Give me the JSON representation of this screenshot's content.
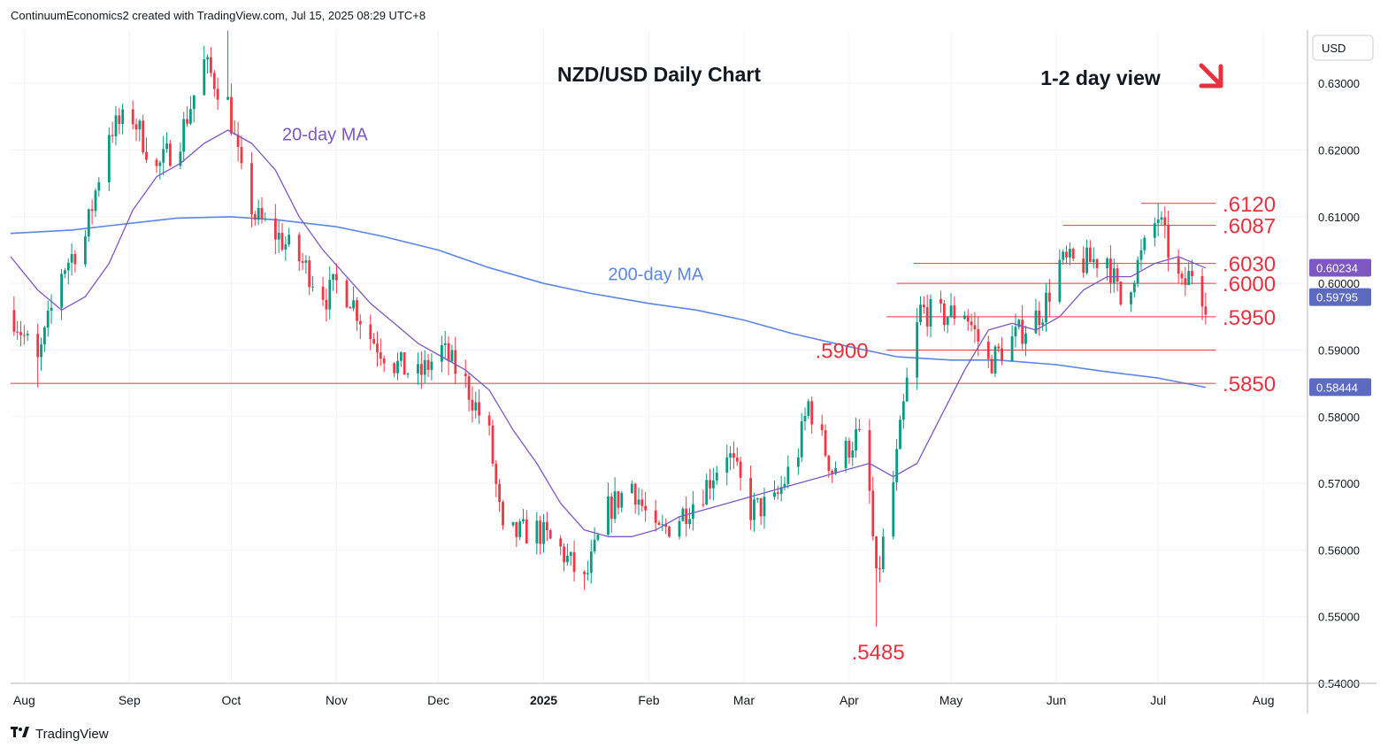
{
  "header": {
    "attribution": "ContinuumEconomics2 created with TradingView.com, Jul 15, 2025 08:29 UTC+8"
  },
  "footer": {
    "logo_icon": "tradingview-logo-icon",
    "brand": "TradingView"
  },
  "colors": {
    "up": "#089981",
    "down": "#f23645",
    "ma20": "#7e57c2",
    "ma200": "#5b86e5",
    "level_line": "#f23645",
    "level_text": "#e8313f",
    "grid": "#f0f3fa",
    "current_price_badge": "#5c6bc0",
    "ma200_badge": "#5c6bc0",
    "support_badge": "#6f7fc9"
  },
  "chart_data": {
    "type": "candlestick",
    "title": "NZD/USD Daily Chart",
    "subtitle": "1-2 day view",
    "view_arrow_icon": "red-down-right-arrow-icon",
    "currency": "USD",
    "ylim": [
      0.54,
      0.638
    ],
    "y_ticks": [
      "0.63000",
      "0.62000",
      "0.61000",
      "0.60000",
      "0.59000",
      "0.58000",
      "0.57000",
      "0.56000",
      "0.55000",
      "0.54000"
    ],
    "x_start": "2024-07-28",
    "x_end": "2025-08-14",
    "x_ticks": [
      {
        "date": "2024-08-01",
        "label": "Aug",
        "bold": false
      },
      {
        "date": "2024-09-01",
        "label": "Sep",
        "bold": false
      },
      {
        "date": "2024-10-01",
        "label": "Oct",
        "bold": false
      },
      {
        "date": "2024-11-01",
        "label": "Nov",
        "bold": false
      },
      {
        "date": "2024-12-01",
        "label": "Dec",
        "bold": false
      },
      {
        "date": "2025-01-01",
        "label": "2025",
        "bold": true
      },
      {
        "date": "2025-02-01",
        "label": "Feb",
        "bold": false
      },
      {
        "date": "2025-03-01",
        "label": "Mar",
        "bold": false
      },
      {
        "date": "2025-04-01",
        "label": "Apr",
        "bold": false
      },
      {
        "date": "2025-05-01",
        "label": "May",
        "bold": false
      },
      {
        "date": "2025-06-01",
        "label": "Jun",
        "bold": false
      },
      {
        "date": "2025-07-01",
        "label": "Jul",
        "bold": false
      },
      {
        "date": "2025-08-01",
        "label": "Aug",
        "bold": false
      }
    ],
    "grid": true,
    "price_path": [
      [
        "2024-07-28",
        0.596
      ],
      [
        "2024-08-05",
        0.588
      ],
      [
        "2024-08-12",
        0.602
      ],
      [
        "2024-08-19",
        0.607
      ],
      [
        "2024-08-26",
        0.623
      ],
      [
        "2024-09-02",
        0.625
      ],
      [
        "2024-09-09",
        0.617
      ],
      [
        "2024-09-16",
        0.622
      ],
      [
        "2024-09-23",
        0.633
      ],
      [
        "2024-09-30",
        0.627
      ],
      [
        "2024-10-04",
        0.616
      ],
      [
        "2024-10-08",
        0.61
      ],
      [
        "2024-10-15",
        0.607
      ],
      [
        "2024-10-22",
        0.603
      ],
      [
        "2024-10-29",
        0.598
      ],
      [
        "2024-11-01",
        0.6
      ],
      [
        "2024-11-05",
        0.598
      ],
      [
        "2024-11-11",
        0.592
      ],
      [
        "2024-11-18",
        0.588
      ],
      [
        "2024-11-25",
        0.586
      ],
      [
        "2024-12-02",
        0.59
      ],
      [
        "2024-12-09",
        0.585
      ],
      [
        "2024-12-16",
        0.577
      ],
      [
        "2024-12-20",
        0.562
      ],
      [
        "2024-12-30",
        0.563
      ],
      [
        "2025-01-06",
        0.56
      ],
      [
        "2025-01-13",
        0.555
      ],
      [
        "2025-01-20",
        0.566
      ],
      [
        "2025-01-27",
        0.57
      ],
      [
        "2025-02-03",
        0.562
      ],
      [
        "2025-02-10",
        0.565
      ],
      [
        "2025-02-17",
        0.569
      ],
      [
        "2025-02-24",
        0.575
      ],
      [
        "2025-03-03",
        0.566
      ],
      [
        "2025-03-10",
        0.567
      ],
      [
        "2025-03-17",
        0.575
      ],
      [
        "2025-03-20",
        0.582
      ],
      [
        "2025-03-27",
        0.572
      ],
      [
        "2025-04-03",
        0.577
      ],
      [
        "2025-04-06",
        0.575
      ],
      [
        "2025-04-09",
        0.555
      ],
      [
        "2025-04-14",
        0.57
      ],
      [
        "2025-04-18",
        0.585
      ],
      [
        "2025-04-22",
        0.596
      ],
      [
        "2025-04-28",
        0.595
      ],
      [
        "2025-05-05",
        0.596
      ],
      [
        "2025-05-12",
        0.588
      ],
      [
        "2025-05-16",
        0.59
      ],
      [
        "2025-05-22",
        0.593
      ],
      [
        "2025-05-28",
        0.596
      ],
      [
        "2025-06-02",
        0.603
      ],
      [
        "2025-06-09",
        0.603
      ],
      [
        "2025-06-16",
        0.604
      ],
      [
        "2025-06-20",
        0.597
      ],
      [
        "2025-06-26",
        0.604
      ],
      [
        "2025-07-01",
        0.61
      ],
      [
        "2025-07-04",
        0.605
      ],
      [
        "2025-07-08",
        0.599
      ],
      [
        "2025-07-11",
        0.602
      ],
      [
        "2025-07-15",
        0.5975
      ]
    ],
    "extremes": [
      [
        "2024-09-30",
        0.6379
      ],
      [
        "2025-04-09",
        0.5485
      ],
      [
        "2025-07-01",
        0.612
      ],
      [
        "2024-08-05",
        0.5844
      ],
      [
        "2025-01-13",
        0.554
      ]
    ],
    "ma20": {
      "label": "20-day MA",
      "points": [
        [
          "2024-07-28",
          0.604
        ],
        [
          "2024-08-05",
          0.599
        ],
        [
          "2024-08-12",
          0.596
        ],
        [
          "2024-08-19",
          0.598
        ],
        [
          "2024-08-26",
          0.603
        ],
        [
          "2024-09-02",
          0.611
        ],
        [
          "2024-09-09",
          0.616
        ],
        [
          "2024-09-16",
          0.618
        ],
        [
          "2024-09-23",
          0.621
        ],
        [
          "2024-09-30",
          0.623
        ],
        [
          "2024-10-07",
          0.621
        ],
        [
          "2024-10-14",
          0.617
        ],
        [
          "2024-10-21",
          0.61
        ],
        [
          "2024-10-28",
          0.605
        ],
        [
          "2024-11-04",
          0.601
        ],
        [
          "2024-11-11",
          0.597
        ],
        [
          "2024-11-18",
          0.594
        ],
        [
          "2024-11-25",
          0.591
        ],
        [
          "2024-12-02",
          0.589
        ],
        [
          "2024-12-09",
          0.587
        ],
        [
          "2024-12-16",
          0.584
        ],
        [
          "2024-12-23",
          0.578
        ],
        [
          "2024-12-30",
          0.573
        ],
        [
          "2025-01-06",
          0.567
        ],
        [
          "2025-01-13",
          0.563
        ],
        [
          "2025-01-20",
          0.562
        ],
        [
          "2025-01-27",
          0.562
        ],
        [
          "2025-02-03",
          0.563
        ],
        [
          "2025-02-10",
          0.565
        ],
        [
          "2025-02-17",
          0.566
        ],
        [
          "2025-02-24",
          0.567
        ],
        [
          "2025-03-03",
          0.568
        ],
        [
          "2025-03-10",
          0.569
        ],
        [
          "2025-03-17",
          0.57
        ],
        [
          "2025-03-24",
          0.571
        ],
        [
          "2025-03-31",
          0.572
        ],
        [
          "2025-04-07",
          0.573
        ],
        [
          "2025-04-14",
          0.571
        ],
        [
          "2025-04-21",
          0.573
        ],
        [
          "2025-04-28",
          0.58
        ],
        [
          "2025-05-05",
          0.587
        ],
        [
          "2025-05-12",
          0.593
        ],
        [
          "2025-05-19",
          0.594
        ],
        [
          "2025-05-26",
          0.593
        ],
        [
          "2025-06-02",
          0.595
        ],
        [
          "2025-06-09",
          0.599
        ],
        [
          "2025-06-16",
          0.601
        ],
        [
          "2025-06-23",
          0.601
        ],
        [
          "2025-06-30",
          0.603
        ],
        [
          "2025-07-07",
          0.604
        ],
        [
          "2025-07-15",
          0.6023
        ]
      ]
    },
    "ma200": {
      "label": "200-day MA",
      "points": [
        [
          "2024-07-28",
          0.6075
        ],
        [
          "2024-08-15",
          0.608
        ],
        [
          "2024-09-01",
          0.609
        ],
        [
          "2024-09-15",
          0.6098
        ],
        [
          "2024-10-01",
          0.61
        ],
        [
          "2024-10-15",
          0.6095
        ],
        [
          "2024-11-01",
          0.6085
        ],
        [
          "2024-11-15",
          0.607
        ],
        [
          "2024-12-01",
          0.605
        ],
        [
          "2024-12-15",
          0.6025
        ],
        [
          "2025-01-01",
          0.6
        ],
        [
          "2025-01-15",
          0.5985
        ],
        [
          "2025-02-01",
          0.597
        ],
        [
          "2025-02-15",
          0.596
        ],
        [
          "2025-03-01",
          0.5945
        ],
        [
          "2025-03-15",
          0.5925
        ],
        [
          "2025-04-01",
          0.5905
        ],
        [
          "2025-04-15",
          0.589
        ],
        [
          "2025-05-01",
          0.5885
        ],
        [
          "2025-05-15",
          0.5885
        ],
        [
          "2025-06-01",
          0.5878
        ],
        [
          "2025-06-15",
          0.5868
        ],
        [
          "2025-07-01",
          0.5858
        ],
        [
          "2025-07-15",
          0.5844
        ]
      ]
    },
    "levels": [
      {
        "label": ".6120",
        "value": 0.612,
        "from": "2025-06-26",
        "to": "2025-07-18"
      },
      {
        "label": ".6087",
        "value": 0.6087,
        "from": "2025-06-03",
        "to": "2025-07-18"
      },
      {
        "label": ".6030",
        "value": 0.603,
        "from": "2025-04-20",
        "to": "2025-07-18"
      },
      {
        "label": ".6000",
        "value": 0.6,
        "from": "2025-04-15",
        "to": "2025-07-18"
      },
      {
        "label": ".5950",
        "value": 0.595,
        "from": "2025-04-12",
        "to": "2025-07-18"
      },
      {
        "label": ".5900",
        "value": 0.59,
        "from": "2025-04-12",
        "to": "2025-07-18"
      },
      {
        "label": ".5850",
        "value": 0.585,
        "from": "2024-07-28",
        "to": "2025-07-18"
      }
    ],
    "low_annotation": {
      "label": ".5485",
      "value": 0.5485,
      "date": "2025-04-09"
    },
    "price_badges": [
      {
        "label": "0.60234",
        "value": 0.60234,
        "kind": "ma20"
      },
      {
        "label": "0.59795",
        "value": 0.59795,
        "kind": "last"
      },
      {
        "label": "0.58444",
        "value": 0.58444,
        "kind": "ma200"
      }
    ]
  }
}
